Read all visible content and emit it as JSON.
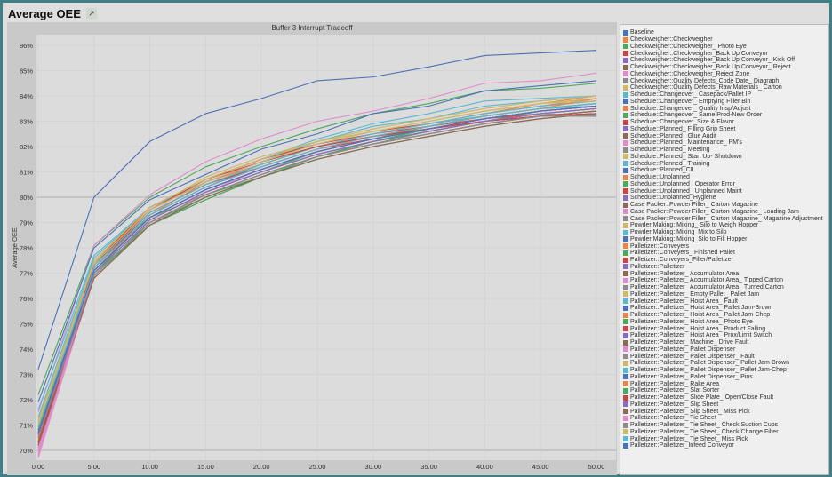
{
  "header": {
    "title": "Average OEE",
    "external_link_icon": "external-link-icon"
  },
  "chart_data": {
    "type": "line",
    "title": "Buffer 3 Interrupt Tradeoff",
    "xlabel": "",
    "ylabel": "Average OEE",
    "xlim": [
      0,
      50
    ],
    "ylim": [
      69.6,
      86.4
    ],
    "x": [
      0,
      5,
      10,
      15,
      20,
      25,
      30,
      35,
      40,
      45,
      50
    ],
    "x_tick_labels": [
      "0.00",
      "5.00",
      "10.00",
      "15.00",
      "20.00",
      "25.00",
      "30.00",
      "35.00",
      "40.00",
      "45.00",
      "50.00"
    ],
    "y_ticks": [
      70,
      71,
      72,
      73,
      74,
      75,
      76,
      77,
      78,
      79,
      80,
      81,
      82,
      83,
      84,
      85,
      86
    ],
    "y_tick_labels": [
      "70%",
      "71%",
      "72%",
      "73%",
      "74%",
      "75%",
      "76%",
      "77%",
      "78%",
      "79%",
      "80%",
      "81%",
      "82%",
      "83%",
      "84%",
      "85%",
      "86%"
    ],
    "grid": true,
    "legend": "right",
    "palette": [
      "#4a72b8",
      "#e8834a",
      "#4ea85e",
      "#cc4444",
      "#8a6cbf",
      "#8c6b55",
      "#e08ccc",
      "#8c8c8c",
      "#cfb86a",
      "#5bb8d0"
    ],
    "series": [
      {
        "name": "Baseline",
        "values": [
          73.2,
          80.0,
          82.2,
          83.3,
          83.9,
          84.6,
          84.75,
          85.15,
          85.6,
          85.7,
          85.8
        ]
      },
      {
        "name": "Checkweigher::Checkweigher",
        "values": [
          70.3,
          77.1,
          79.3,
          80.6,
          81.3,
          82.0,
          82.5,
          82.9,
          83.3,
          83.7,
          84.0
        ]
      },
      {
        "name": "Checkweigher::Checkweigher_ Photo Eye",
        "values": [
          72.2,
          78.1,
          80.0,
          81.2,
          82.0,
          82.7,
          83.3,
          83.7,
          84.2,
          84.3,
          84.5
        ]
      },
      {
        "name": "Checkweigher::Checkweigher_Back Up Conveyor",
        "values": [
          70.5,
          77.3,
          79.5,
          80.6,
          81.4,
          82.0,
          82.4,
          82.7,
          83.0,
          83.2,
          83.3
        ]
      },
      {
        "name": "Checkweigher::Checkweigher_Back Up Conveyor_ Kick Off",
        "values": [
          70.7,
          77.0,
          79.1,
          80.2,
          81.0,
          81.7,
          82.2,
          82.6,
          83.0,
          83.3,
          83.5
        ]
      },
      {
        "name": "Checkweigher::Checkweigher_Back Up Conveyor_ Reject",
        "values": [
          70.1,
          76.8,
          78.9,
          80.0,
          80.8,
          81.5,
          82.0,
          82.4,
          82.8,
          83.1,
          83.3
        ]
      },
      {
        "name": "Checkweigher::Checkweigher_Reject Zone",
        "values": [
          71.5,
          78.1,
          80.1,
          81.4,
          82.3,
          83.0,
          83.4,
          83.9,
          84.5,
          84.6,
          84.9
        ]
      },
      {
        "name": "Checkweigher::Quality Defects_Code Date_ Diagraph",
        "values": [
          70.6,
          76.9,
          79.0,
          80.1,
          80.9,
          81.6,
          82.1,
          82.5,
          82.9,
          83.2,
          83.2
        ]
      },
      {
        "name": "Checkweigher::Quality Defects_Raw Materials_ Carton",
        "values": [
          71.0,
          77.5,
          79.6,
          80.7,
          81.5,
          82.2,
          82.7,
          83.1,
          83.5,
          83.8,
          84.0
        ]
      },
      {
        "name": "Schedule::Changeover_ Casepack/Pallet IP",
        "values": [
          71.6,
          77.7,
          79.6,
          80.7,
          81.5,
          82.3,
          82.9,
          83.3,
          83.8,
          83.9,
          84.0
        ]
      },
      {
        "name": "Schedule::Changeover_ Emptying Filler Bin",
        "values": [
          71.9,
          78.0,
          79.9,
          80.9,
          81.9,
          82.5,
          83.3,
          83.6,
          84.2,
          84.4,
          84.6
        ]
      },
      {
        "name": "Schedule::Changeover_ Quality Insp/Adjust",
        "values": [
          70.4,
          77.2,
          79.4,
          80.5,
          81.3,
          82.0,
          82.5,
          82.9,
          83.3,
          83.6,
          83.9
        ]
      },
      {
        "name": "Schedule::Changeover_ Same Prod-New Order",
        "values": [
          70.9,
          77.4,
          79.2,
          80.1,
          80.8,
          81.6,
          82.1,
          82.6,
          83.0,
          83.4,
          83.6
        ]
      },
      {
        "name": "Schedule::Changeover_Size & Flavor",
        "values": [
          70.2,
          77.3,
          79.5,
          80.7,
          81.5,
          82.1,
          82.6,
          82.9,
          83.2,
          83.5,
          83.6
        ]
      },
      {
        "name": "Schedule::Planned_ Filling Grip Sheet",
        "values": [
          70.8,
          77.0,
          79.1,
          80.2,
          81.0,
          81.7,
          82.2,
          82.6,
          83.0,
          83.3,
          83.5
        ]
      },
      {
        "name": "Schedule::Planned_ Glue Audit",
        "values": [
          70.5,
          76.9,
          79.0,
          80.1,
          80.9,
          81.6,
          82.1,
          82.5,
          82.9,
          83.2,
          83.4
        ]
      },
      {
        "name": "Schedule::Planned_ Maintenance_ PM's",
        "values": [
          70.0,
          76.8,
          78.9,
          80.2,
          81.1,
          81.8,
          82.3,
          82.7,
          83.1,
          83.4,
          83.6
        ]
      },
      {
        "name": "Schedule::Planned_ Meeting",
        "values": [
          70.6,
          77.1,
          79.2,
          80.3,
          81.1,
          81.8,
          82.3,
          82.7,
          83.1,
          83.4,
          83.6
        ]
      },
      {
        "name": "Schedule::Planned_ Start Up- Shutdown",
        "values": [
          71.2,
          77.5,
          79.5,
          80.8,
          81.6,
          82.2,
          82.6,
          83.0,
          83.4,
          83.7,
          83.9
        ]
      },
      {
        "name": "Schedule::Planned_ Training",
        "values": [
          71.3,
          77.6,
          79.6,
          80.6,
          81.4,
          82.2,
          82.8,
          83.1,
          83.6,
          83.8,
          84.0
        ]
      },
      {
        "name": "Schedule::Planned_CIL",
        "values": [
          70.4,
          77.0,
          79.1,
          80.2,
          81.0,
          81.7,
          82.2,
          82.6,
          83.0,
          83.3,
          83.5
        ]
      },
      {
        "name": "Schedule::Unplanned",
        "values": [
          70.7,
          77.2,
          79.3,
          80.4,
          81.2,
          81.9,
          82.4,
          82.8,
          83.2,
          83.5,
          83.7
        ]
      },
      {
        "name": "Schedule::Unplanned_ Operator Error",
        "values": [
          70.9,
          77.1,
          79.0,
          80.0,
          80.8,
          81.6,
          82.2,
          82.7,
          83.1,
          83.4,
          83.6
        ]
      },
      {
        "name": "Schedule::Unplanned_ Unplanned Maint",
        "values": [
          70.3,
          77.3,
          79.5,
          80.7,
          81.5,
          82.1,
          82.5,
          82.8,
          83.1,
          83.3,
          83.5
        ]
      },
      {
        "name": "Schedule::Unplanned_Hygiene",
        "values": [
          70.6,
          77.1,
          79.2,
          80.3,
          81.1,
          81.8,
          82.3,
          82.7,
          83.1,
          83.4,
          83.6
        ]
      },
      {
        "name": "Case Packer::Powder Filler_ Carton Magazine",
        "values": [
          70.2,
          76.9,
          79.0,
          80.1,
          80.9,
          81.6,
          82.1,
          82.5,
          82.9,
          83.2,
          83.4
        ]
      },
      {
        "name": "Case Packer::Powder Filler_ Carton Magazine_ Loading Jam",
        "values": [
          69.8,
          77.0,
          79.1,
          80.2,
          81.0,
          81.7,
          82.2,
          82.6,
          83.0,
          83.3,
          83.5
        ]
      },
      {
        "name": "Case Packer::Powder Filler_ Carton Magazine_ Magazine Adjustment",
        "values": [
          70.5,
          76.9,
          79.0,
          80.1,
          80.9,
          81.6,
          82.1,
          82.5,
          82.9,
          83.2,
          83.3
        ]
      },
      {
        "name": "Powder Making::Mixing_ Silo to Weigh Hopper",
        "values": [
          71.0,
          77.4,
          79.5,
          80.6,
          81.4,
          82.1,
          82.6,
          83.0,
          83.4,
          83.7,
          83.9
        ]
      },
      {
        "name": "Powder Making::Mixing_Mix to Silo",
        "values": [
          70.9,
          77.3,
          79.4,
          80.5,
          81.3,
          82.0,
          82.5,
          82.9,
          83.3,
          83.6,
          83.8
        ]
      },
      {
        "name": "Powder Making::Mixing_Silo to Fill Hopper",
        "values": [
          70.7,
          77.1,
          79.2,
          80.3,
          81.1,
          81.8,
          82.3,
          82.7,
          83.1,
          83.4,
          83.6
        ]
      },
      {
        "name": "Palletizer::Conveyers",
        "values": [
          70.4,
          77.0,
          79.1,
          80.2,
          81.0,
          81.7,
          82.2,
          82.6,
          83.0,
          83.3,
          83.5
        ]
      },
      {
        "name": "Palletizer::Conveyers_ Finished Pallet",
        "values": [
          71.1,
          77.0,
          78.9,
          79.9,
          80.8,
          81.6,
          82.2,
          82.7,
          83.1,
          83.4,
          83.6
        ]
      },
      {
        "name": "Palletizer::Conveyers_Filler/Palletizer",
        "values": [
          70.6,
          77.4,
          79.6,
          80.7,
          81.4,
          82.0,
          82.4,
          82.7,
          83.0,
          83.2,
          83.3
        ]
      },
      {
        "name": "Palletizer::Palletizer",
        "values": [
          70.8,
          77.2,
          79.3,
          80.4,
          81.2,
          81.9,
          82.4,
          82.8,
          83.2,
          83.5,
          83.7
        ]
      },
      {
        "name": "Palletizer::Palletizer_ Accumulator Area",
        "values": [
          70.3,
          76.8,
          78.9,
          80.0,
          80.8,
          81.5,
          82.0,
          82.4,
          82.8,
          83.1,
          83.3
        ]
      },
      {
        "name": "Palletizer::Palletizer_ Accumulator Area_ Tipped Carton",
        "values": [
          69.7,
          76.9,
          79.0,
          80.1,
          80.9,
          81.6,
          82.1,
          82.5,
          82.9,
          83.2,
          83.4
        ]
      },
      {
        "name": "Palletizer::Palletizer_ Accumulator Area_ Turned Carton",
        "values": [
          70.5,
          77.0,
          79.1,
          80.2,
          81.0,
          81.7,
          82.2,
          82.6,
          83.0,
          83.3,
          83.2
        ]
      },
      {
        "name": "Palletizer::Palletizer_ Empty Pallet_ Pallet Jam",
        "values": [
          70.9,
          77.3,
          79.4,
          80.5,
          81.3,
          82.0,
          82.5,
          82.9,
          83.3,
          83.6,
          83.8
        ]
      },
      {
        "name": "Palletizer::Palletizer_ Hoist Area_ Fault",
        "values": [
          71.0,
          77.2,
          79.3,
          80.4,
          81.3,
          82.0,
          82.5,
          82.9,
          83.2,
          83.5,
          83.6
        ]
      },
      {
        "name": "Palletizer::Palletizer_ Hoist Area_ Pallet Jam-Brown",
        "values": [
          70.6,
          77.1,
          79.2,
          80.3,
          81.1,
          81.8,
          82.3,
          82.7,
          83.1,
          83.4,
          83.6
        ]
      },
      {
        "name": "Palletizer::Palletizer_ Hoist Area_ Pallet Jam-Chep",
        "values": [
          70.4,
          77.3,
          79.4,
          80.5,
          81.3,
          82.0,
          82.5,
          82.9,
          83.3,
          83.6,
          83.8
        ]
      },
      {
        "name": "Palletizer::Palletizer_ Hoist Area_ Photo Eye",
        "values": [
          70.8,
          77.0,
          79.1,
          80.2,
          81.0,
          81.8,
          82.3,
          82.8,
          83.2,
          83.5,
          83.7
        ]
      },
      {
        "name": "Palletizer::Palletizer_ Hoist Area_ Product Falling",
        "values": [
          70.2,
          77.2,
          79.4,
          80.5,
          81.2,
          81.9,
          82.3,
          82.7,
          83.0,
          83.2,
          83.4
        ]
      },
      {
        "name": "Palletizer::Palletizer_ Hoist Area_ Prox/Limit Switch",
        "values": [
          70.7,
          77.1,
          79.2,
          80.3,
          81.1,
          81.8,
          82.3,
          82.7,
          83.1,
          83.4,
          83.6
        ]
      },
      {
        "name": "Palletizer::Palletizer_ Machine_ Drive Fault",
        "values": [
          70.5,
          76.9,
          79.0,
          80.1,
          80.9,
          81.6,
          82.1,
          82.5,
          82.9,
          83.2,
          83.4
        ]
      },
      {
        "name": "Palletizer::Palletizer_ Pallet Dispenser",
        "values": [
          70.1,
          77.0,
          79.1,
          80.2,
          81.0,
          81.7,
          82.2,
          82.6,
          83.0,
          83.3,
          83.5
        ]
      },
      {
        "name": "Palletizer::Palletizer_ Pallet Dispenser_ Fault",
        "values": [
          70.6,
          76.8,
          78.9,
          80.0,
          80.8,
          81.5,
          82.0,
          82.4,
          82.8,
          83.1,
          83.3
        ]
      },
      {
        "name": "Palletizer::Palletizer_ Pallet Dispenser_ Pallet Jam-Brown",
        "values": [
          71.1,
          77.5,
          79.6,
          80.7,
          81.5,
          82.2,
          82.7,
          83.1,
          83.5,
          83.8,
          84.0
        ]
      },
      {
        "name": "Palletizer::Palletizer_ Pallet Dispenser_ Pallet Jam-Chep",
        "values": [
          70.9,
          77.3,
          79.4,
          80.5,
          81.3,
          82.0,
          82.5,
          82.9,
          83.3,
          83.6,
          83.8
        ]
      },
      {
        "name": "Palletizer::Palletizer_ Pallet Dispenser_ Pins",
        "values": [
          70.7,
          77.1,
          79.2,
          80.3,
          81.1,
          81.8,
          82.3,
          82.7,
          83.1,
          83.4,
          83.6
        ]
      },
      {
        "name": "Palletizer::Palletizer_ Rake Area",
        "values": [
          70.4,
          77.2,
          79.3,
          80.4,
          81.2,
          81.9,
          82.4,
          82.8,
          83.2,
          83.5,
          83.9
        ]
      },
      {
        "name": "Palletizer::Palletizer_ Slat Sorter",
        "values": [
          70.8,
          76.9,
          78.9,
          79.9,
          80.8,
          81.6,
          82.2,
          82.6,
          83.0,
          83.3,
          83.5
        ]
      },
      {
        "name": "Palletizer::Palletizer_ Slide Plate_ Open/Close Fault",
        "values": [
          70.3,
          77.4,
          79.5,
          80.6,
          81.4,
          82.0,
          82.4,
          82.7,
          83.0,
          83.2,
          83.3
        ]
      },
      {
        "name": "Palletizer::Palletizer_ Slip Sheet",
        "values": [
          70.6,
          77.0,
          79.1,
          80.2,
          81.0,
          81.7,
          82.2,
          82.6,
          83.0,
          83.3,
          83.5
        ]
      },
      {
        "name": "Palletizer::Palletizer_ Slip Sheet_ Miss Pick",
        "values": [
          70.2,
          76.8,
          78.9,
          80.0,
          80.8,
          81.5,
          82.0,
          82.4,
          82.8,
          83.1,
          83.3
        ]
      },
      {
        "name": "Palletizer::Palletizer_ Tie Sheet",
        "values": [
          69.9,
          77.1,
          79.2,
          80.3,
          81.1,
          81.8,
          82.3,
          82.7,
          83.1,
          83.4,
          83.6
        ]
      },
      {
        "name": "Palletizer::Palletizer_ Tie Sheet_ Check Suction Cups",
        "values": [
          70.5,
          76.9,
          79.0,
          80.1,
          80.9,
          81.6,
          82.1,
          82.5,
          82.9,
          83.2,
          83.2
        ]
      },
      {
        "name": "Palletizer::Palletizer_ Tie Sheet_ Check/Change Filter",
        "values": [
          71.0,
          77.4,
          79.5,
          80.6,
          81.4,
          82.1,
          82.6,
          83.0,
          83.4,
          83.7,
          83.8
        ]
      },
      {
        "name": "Palletizer::Palletizer_ Tie Sheet_ Miss Pick",
        "values": [
          70.9,
          77.2,
          79.3,
          80.4,
          81.2,
          81.9,
          82.4,
          82.8,
          83.2,
          83.5,
          83.7
        ]
      },
      {
        "name": "Palletizer::Palletizer_Infeed Conveyor",
        "values": [
          70.7,
          77.1,
          79.2,
          80.3,
          81.1,
          81.8,
          82.3,
          82.7,
          83.1,
          83.4,
          83.6
        ]
      }
    ]
  }
}
